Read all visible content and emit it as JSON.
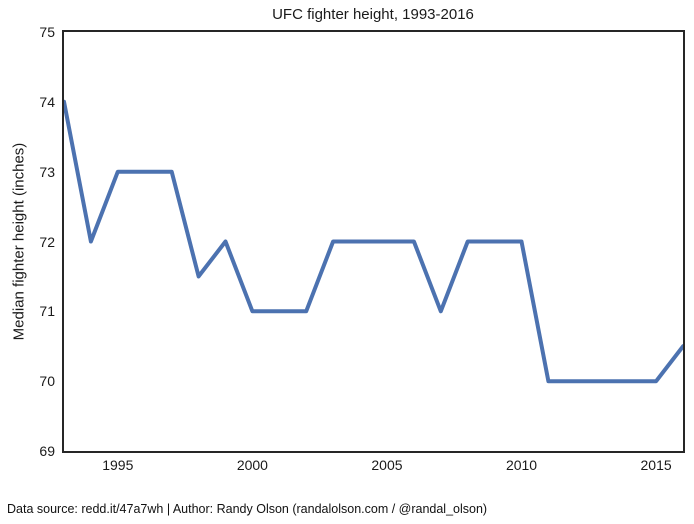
{
  "chart_data": {
    "type": "line",
    "title": "UFC fighter height, 1993-2016",
    "xlabel": "",
    "ylabel": "Median fighter height (inches)",
    "x": [
      1993,
      1994,
      1995,
      1996,
      1997,
      1998,
      1999,
      2000,
      2001,
      2002,
      2003,
      2004,
      2005,
      2006,
      2007,
      2008,
      2009,
      2010,
      2011,
      2012,
      2013,
      2014,
      2015,
      2016
    ],
    "y": [
      74,
      72,
      73,
      73,
      73,
      71.5,
      72,
      71,
      71,
      71,
      72,
      72,
      72,
      72,
      71,
      72,
      72,
      72,
      70,
      70,
      70,
      70,
      70,
      70.5
    ],
    "series_name": "Median fighter height",
    "xlim": [
      1993,
      2016
    ],
    "ylim": [
      69,
      75
    ],
    "xticks": [
      1995,
      2000,
      2005,
      2010,
      2015
    ],
    "yticks": [
      69,
      70,
      71,
      72,
      73,
      74,
      75
    ],
    "grid": false,
    "legend": null,
    "line_color": "#4C72B0",
    "line_width": 4,
    "spine_color": "#262626",
    "background_color": "#ffffff"
  },
  "footer": {
    "text": "Data source: redd.it/47a7wh | Author: Randy Olson (randalolson.com / @randal_olson)"
  }
}
